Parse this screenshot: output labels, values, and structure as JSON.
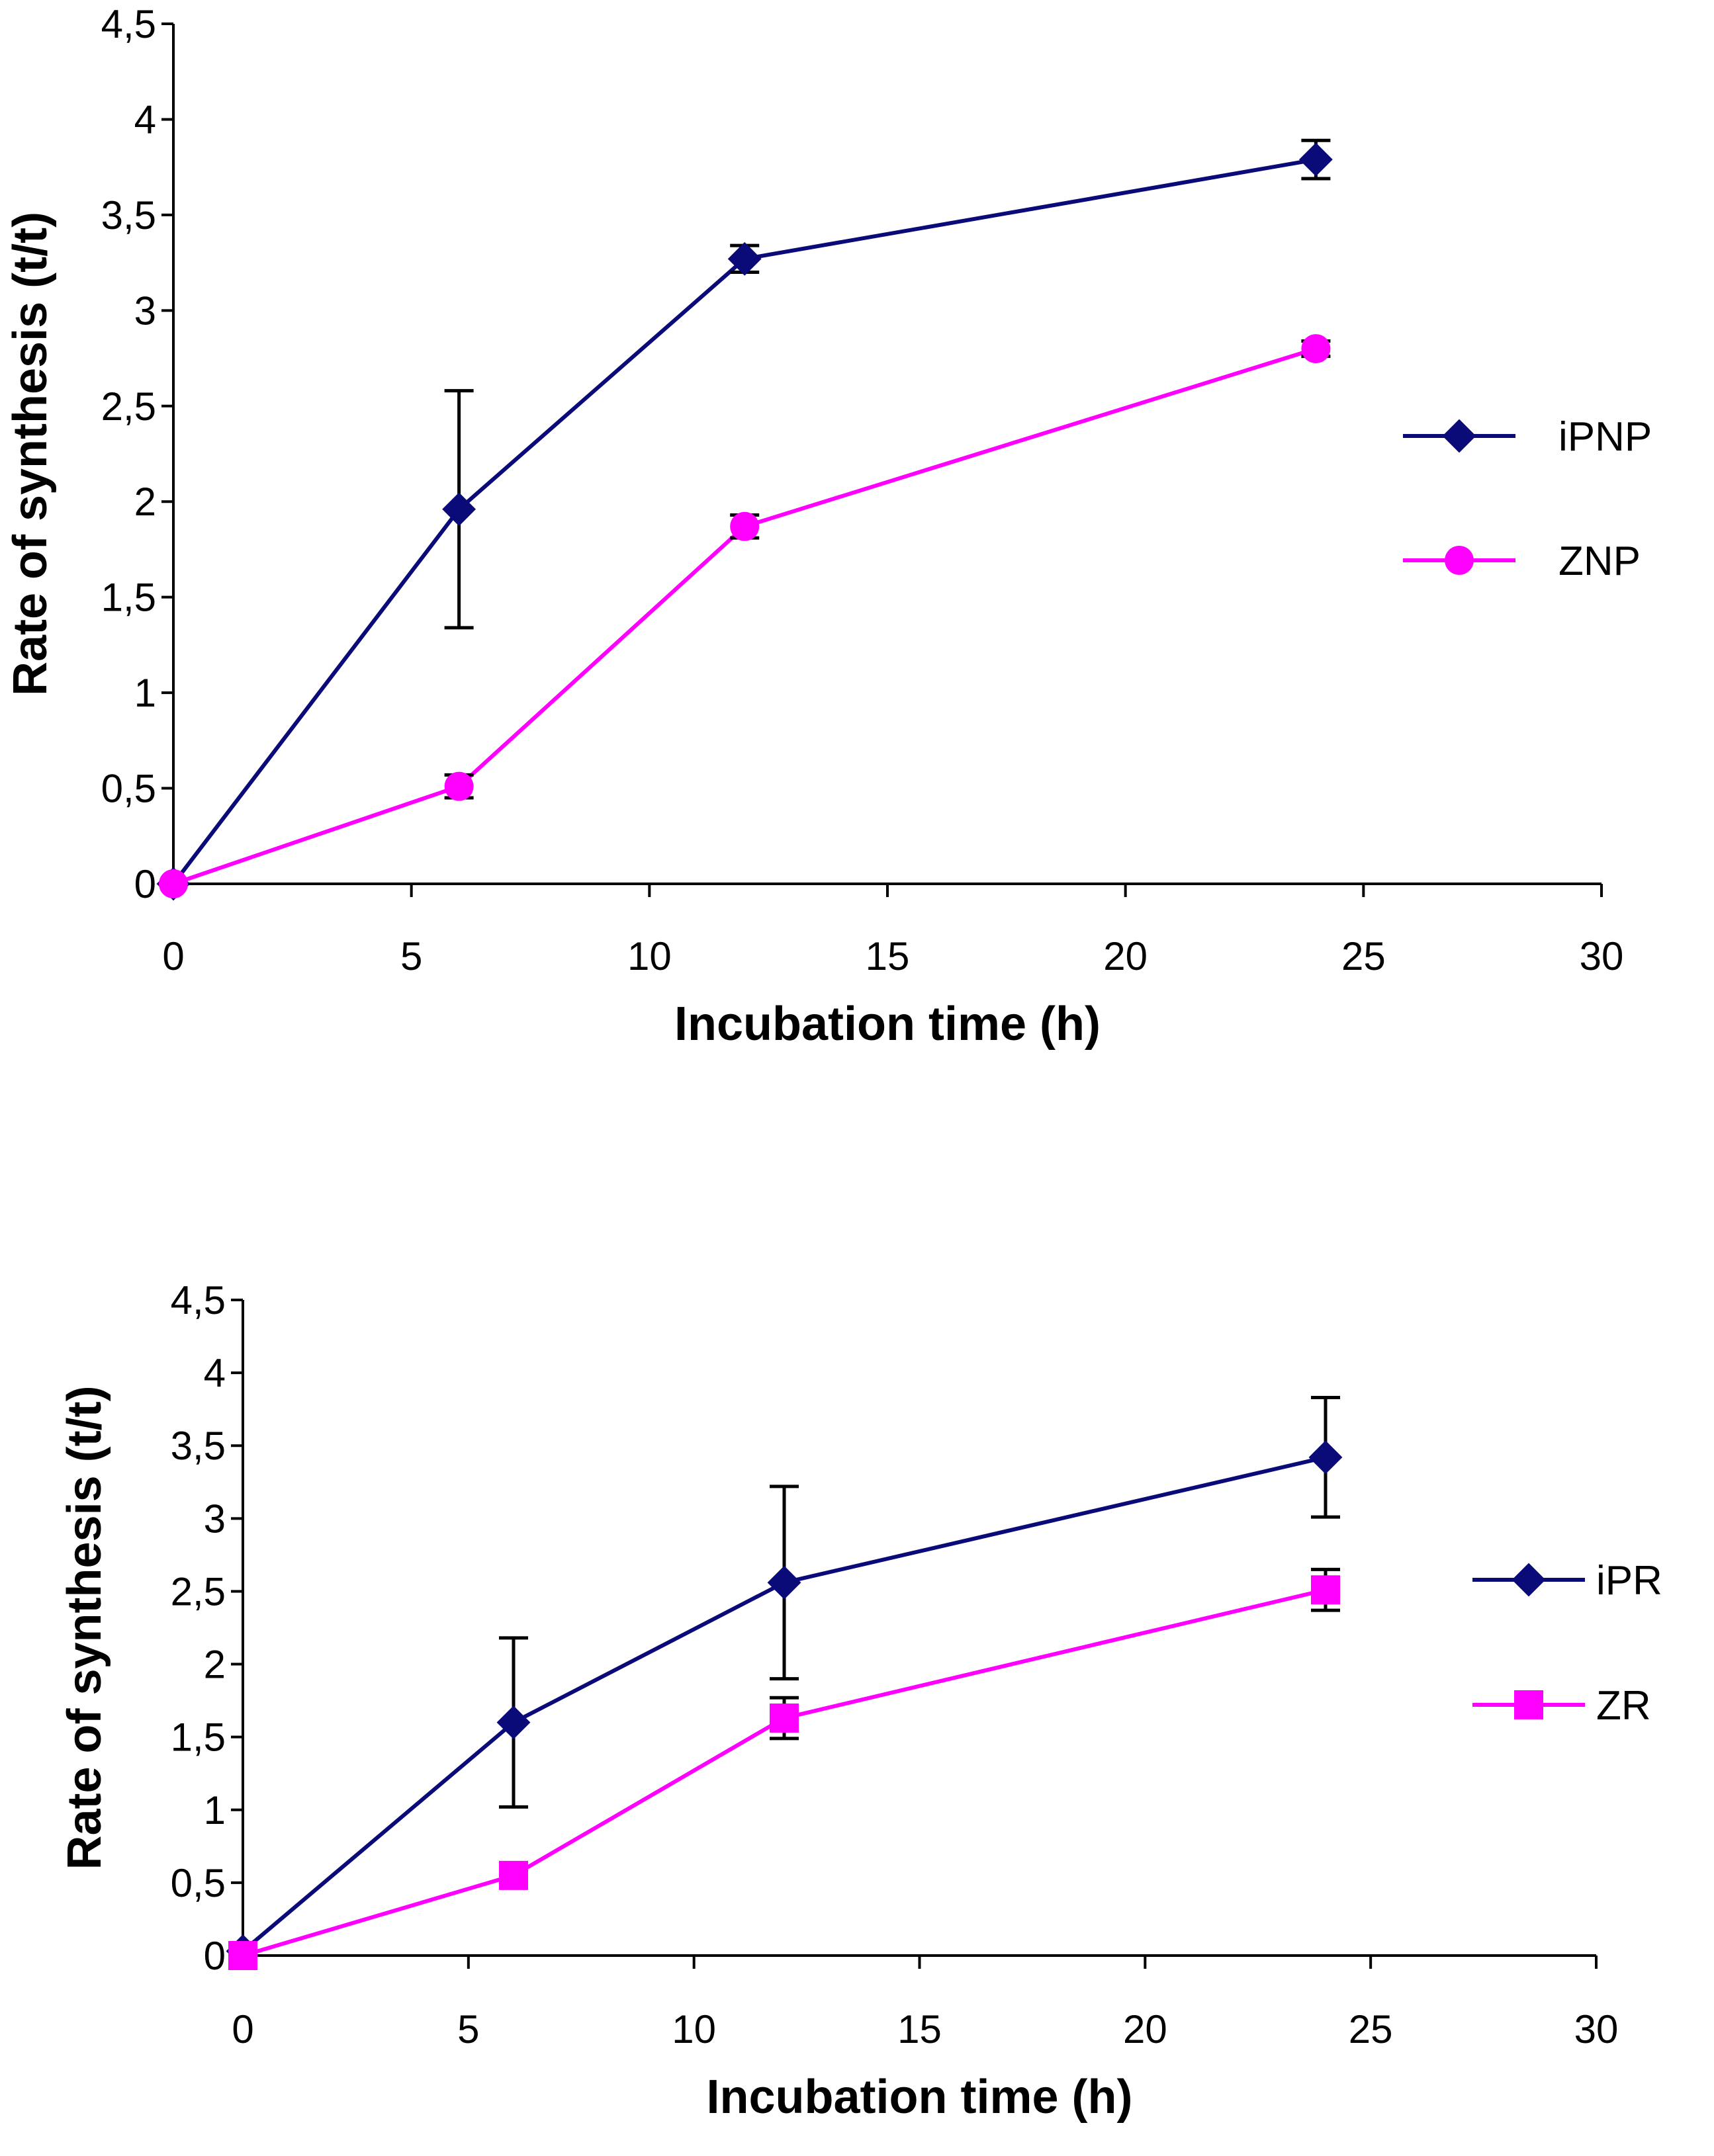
{
  "chart_data": [
    {
      "type": "line",
      "title": "",
      "xlabel": "Incubation time (h)",
      "ylabel": "Rate of synthesis (t/t)",
      "xlim": [
        0,
        30
      ],
      "ylim": [
        0,
        4.5
      ],
      "x_ticks": [
        0,
        5,
        10,
        15,
        20,
        25,
        30
      ],
      "y_ticks": [
        0,
        0.5,
        1,
        1.5,
        2,
        2.5,
        3,
        3.5,
        4,
        4.5
      ],
      "x_tick_labels": [
        "0",
        "5",
        "10",
        "15",
        "20",
        "25",
        "30"
      ],
      "y_tick_labels": [
        "0",
        "0,5",
        "1",
        "1,5",
        "2",
        "2,5",
        "3",
        "3,5",
        "4",
        "4,5"
      ],
      "grid": false,
      "legend_position": "right",
      "x": [
        0,
        6,
        12,
        24
      ],
      "series": [
        {
          "name": "iPNP",
          "color": "#0a0a78",
          "marker": "diamond",
          "values": [
            0,
            1.96,
            3.27,
            3.79
          ],
          "errors": [
            0,
            0.62,
            0.07,
            0.1
          ]
        },
        {
          "name": "ZNP",
          "color": "#ff00ff",
          "marker": "circle",
          "values": [
            0,
            0.51,
            1.87,
            2.8
          ],
          "errors": [
            0,
            0.06,
            0.06,
            0.04
          ]
        }
      ]
    },
    {
      "type": "line",
      "title": "",
      "xlabel": "Incubation time (h)",
      "ylabel": "Rate of synthesis (t/t)",
      "xlim": [
        0,
        30
      ],
      "ylim": [
        0,
        4.5
      ],
      "x_ticks": [
        0,
        5,
        10,
        15,
        20,
        25,
        30
      ],
      "y_ticks": [
        0,
        0.5,
        1,
        1.5,
        2,
        2.5,
        3,
        3.5,
        4,
        4.5
      ],
      "x_tick_labels": [
        "0",
        "5",
        "10",
        "15",
        "20",
        "25",
        "30"
      ],
      "y_tick_labels": [
        "0",
        "0,5",
        "1",
        "1,5",
        "2",
        "2,5",
        "3",
        "3,5",
        "4",
        "4,5"
      ],
      "grid": false,
      "legend_position": "right",
      "x": [
        0,
        6,
        12,
        24
      ],
      "series": [
        {
          "name": "iPR",
          "color": "#0a0a78",
          "marker": "diamond",
          "values": [
            0.03,
            1.6,
            2.56,
            3.42
          ],
          "errors": [
            0,
            0.58,
            0.66,
            0.41
          ]
        },
        {
          "name": "ZR",
          "color": "#ff00ff",
          "marker": "square",
          "values": [
            0,
            0.55,
            1.63,
            2.51
          ],
          "errors": [
            0,
            0.03,
            0.14,
            0.14
          ]
        }
      ]
    }
  ]
}
